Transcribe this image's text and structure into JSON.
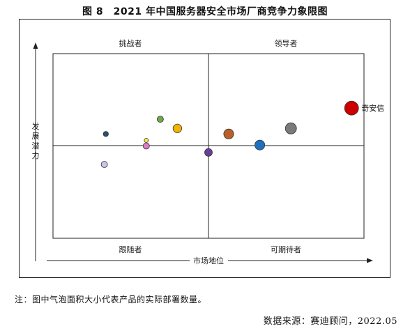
{
  "figure": {
    "title": "图 8　2021 年中国服务器安全市场厂商竞争力象限图",
    "note": "注：图中气泡面积大小代表产品的实际部署数量。",
    "source": "数据来源：赛迪顾问，2022.05"
  },
  "chart_data": {
    "type": "scatter",
    "title": "2021 年中国服务器安全市场厂商竞争力象限图",
    "xlabel": "市场地位",
    "ylabel": "发展潜力",
    "quadrants": {
      "top_left": "挑战者",
      "top_right": "领导者",
      "bottom_left": "跟随者",
      "bottom_right": "可期待者"
    },
    "x_axis_arrow": true,
    "y_axis_arrow": true,
    "tick_labels": false,
    "xlim": [
      -1,
      1
    ],
    "ylim": [
      -1,
      1
    ],
    "points": [
      {
        "label": "奇安信",
        "x": 0.92,
        "y": 0.41,
        "size": 1.0,
        "color": "#cc0000"
      },
      {
        "label": "",
        "x": 0.53,
        "y": 0.19,
        "size": 0.64,
        "color": "#7a7a7a"
      },
      {
        "label": "",
        "x": 0.33,
        "y": 0.01,
        "size": 0.5,
        "color": "#1f6fbf"
      },
      {
        "label": "",
        "x": 0.13,
        "y": 0.13,
        "size": 0.5,
        "color": "#b86028"
      },
      {
        "label": "",
        "x": 0.0,
        "y": -0.07,
        "size": 0.3,
        "color": "#6a3d9a"
      },
      {
        "label": "",
        "x": -0.2,
        "y": 0.19,
        "size": 0.38,
        "color": "#f2b400"
      },
      {
        "label": "",
        "x": -0.31,
        "y": 0.29,
        "size": 0.2,
        "color": "#6fa84a"
      },
      {
        "label": "",
        "x": -0.4,
        "y": 0.06,
        "size": 0.09,
        "color": "#f5e642"
      },
      {
        "label": "",
        "x": -0.4,
        "y": 0.0,
        "size": 0.2,
        "color": "#e07ac8"
      },
      {
        "label": "",
        "x": -0.66,
        "y": 0.13,
        "size": 0.14,
        "color": "#2e4d70"
      },
      {
        "label": "",
        "x": -0.67,
        "y": -0.2,
        "size": 0.2,
        "color": "#c9c4ea"
      }
    ]
  }
}
